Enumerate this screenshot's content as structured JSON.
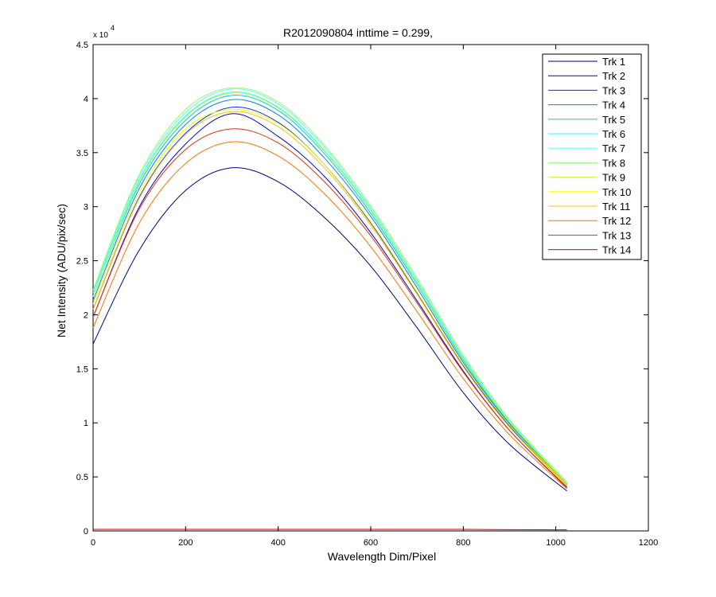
{
  "chart_data": {
    "type": "line",
    "title": "R2012090804 inttime = 0.299,",
    "xlabel": "Wavelength Dim/Pixel",
    "ylabel": "Net Intensity (ADU/pix/sec)",
    "y_multiplier_label": "x 10",
    "y_multiplier_exponent": "4",
    "xlim": [
      0,
      1200
    ],
    "ylim": [
      0,
      45000
    ],
    "x_ticks": [
      0,
      200,
      400,
      600,
      800,
      1000,
      1200
    ],
    "y_ticks": [
      0,
      5000,
      10000,
      15000,
      20000,
      25000,
      30000,
      35000,
      40000,
      45000
    ],
    "x_tick_labels": [
      "0",
      "200",
      "400",
      "600",
      "800",
      "1000",
      "1200"
    ],
    "y_tick_labels": [
      "0",
      "0.5",
      "1",
      "1.5",
      "2",
      "2.5",
      "3",
      "3.5",
      "4",
      "4.5"
    ],
    "grid": false,
    "legend_position": "top-right",
    "x": [
      0,
      100,
      200,
      300,
      400,
      500,
      600,
      700,
      800,
      900,
      1024
    ],
    "series": [
      {
        "name": "Trk 1",
        "color": "#00007f",
        "values": [
          17300,
          26000,
          31500,
          33600,
          32300,
          29000,
          24500,
          18800,
          12800,
          8000,
          3700
        ]
      },
      {
        "name": "Trk 2",
        "color": "#0000d6",
        "values": [
          19800,
          30000,
          35800,
          38600,
          36500,
          32800,
          27600,
          21300,
          14800,
          9300,
          4000
        ]
      },
      {
        "name": "Trk 3",
        "color": "#0030ff",
        "values": [
          20500,
          30900,
          36800,
          39200,
          37800,
          33900,
          28500,
          22000,
          15300,
          9700,
          4200
        ]
      },
      {
        "name": "Trk 4",
        "color": "#0080ff",
        "values": [
          21300,
          31700,
          37600,
          39900,
          38500,
          34500,
          29100,
          22500,
          15600,
          9900,
          4300
        ]
      },
      {
        "name": "Trk 5",
        "color": "#00c8ff",
        "values": [
          21700,
          32100,
          38000,
          40300,
          38900,
          34900,
          29400,
          22800,
          15800,
          10000,
          4350
        ]
      },
      {
        "name": "Trk 6",
        "color": "#20f8ff",
        "values": [
          22000,
          32500,
          38400,
          40600,
          39200,
          35200,
          29700,
          23000,
          16000,
          10100,
          4400
        ]
      },
      {
        "name": "Trk 7",
        "color": "#60ffe0",
        "values": [
          22200,
          32800,
          38700,
          40900,
          39500,
          35500,
          29900,
          23200,
          16100,
          10200,
          4450
        ]
      },
      {
        "name": "Trk 8",
        "color": "#90ff70",
        "values": [
          22300,
          33000,
          39000,
          41000,
          39700,
          35700,
          30100,
          23400,
          16300,
          10300,
          4500
        ]
      },
      {
        "name": "Trk 9",
        "color": "#c8ff30",
        "values": [
          21700,
          32300,
          38300,
          40500,
          39100,
          35100,
          29600,
          22900,
          15900,
          10100,
          4400
        ]
      },
      {
        "name": "Trk 10",
        "color": "#f0ff00",
        "values": [
          21000,
          31300,
          37200,
          39000,
          37700,
          33900,
          28600,
          22100,
          15400,
          9800,
          4250
        ]
      },
      {
        "name": "Trk 11",
        "color": "#ffbf00",
        "values": [
          20500,
          30800,
          36700,
          38800,
          37400,
          33600,
          28300,
          21900,
          15200,
          9600,
          4200
        ]
      },
      {
        "name": "Trk 12",
        "color": "#ff7000",
        "values": [
          18800,
          28500,
          34000,
          36000,
          34700,
          31200,
          26300,
          20300,
          14100,
          8900,
          3900
        ]
      },
      {
        "name": "Trk 13",
        "color": "#e83000",
        "values": [
          19800,
          29800,
          35300,
          37200,
          35900,
          32300,
          27300,
          21100,
          14700,
          9300,
          4050
        ]
      },
      {
        "name": "Trk 14",
        "color": "#d40000",
        "values": [
          150,
          150,
          150,
          150,
          150,
          150,
          150,
          150,
          150,
          120,
          100
        ]
      }
    ]
  }
}
